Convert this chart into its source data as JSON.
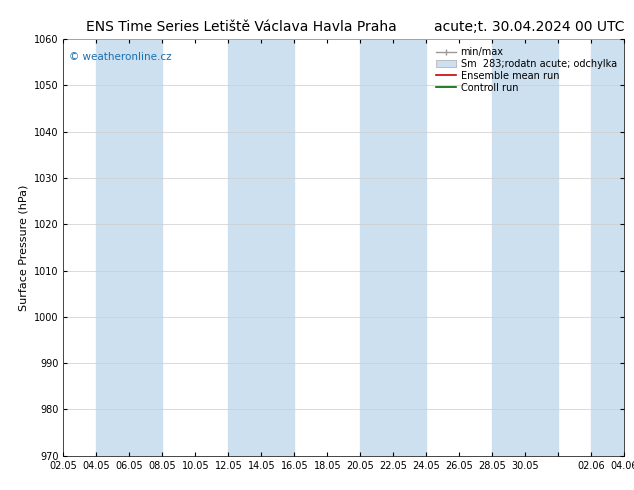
{
  "title_left": "ENS Time Series Letiště Václava Havla Praha",
  "title_right": "acute;t. 30.04.2024 00 UTC",
  "ylabel": "Surface Pressure (hPa)",
  "ylim": [
    970,
    1060
  ],
  "yticks": [
    970,
    980,
    990,
    1000,
    1010,
    1020,
    1030,
    1040,
    1050,
    1060
  ],
  "x_labels": [
    "02.05",
    "04.05",
    "06.05",
    "08.05",
    "10.05",
    "12.05",
    "14.05",
    "16.05",
    "18.05",
    "20.05",
    "22.05",
    "24.05",
    "26.05",
    "28.05",
    "30.05",
    "",
    "02.06",
    "04.06"
  ],
  "band_color": "#cce0f0",
  "band_alpha": 1.0,
  "background_color": "#ffffff",
  "watermark": "© weatheronline.cz",
  "watermark_color": "#1a6faf",
  "legend_entries": [
    "min/max",
    "Sm  283;rodatn acute; odchylka",
    "Ensemble mean run",
    "Controll run"
  ],
  "title_fontsize": 10,
  "tick_fontsize": 7,
  "ylabel_fontsize": 8,
  "band_positions": [
    1,
    5,
    9,
    13,
    16
  ],
  "band_widths": [
    2,
    2,
    2,
    2,
    2
  ]
}
